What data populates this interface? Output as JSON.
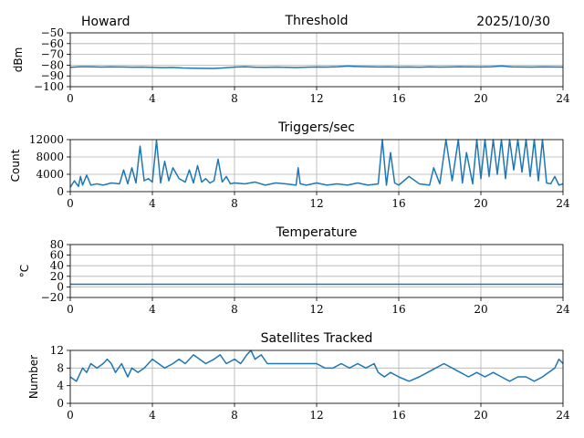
{
  "header": {
    "station": "Howard",
    "date": "2025/10/30"
  },
  "chart_data": [
    {
      "id": "threshold",
      "type": "line",
      "title": "Threshold",
      "ylabel": "dBm",
      "xlabel": "",
      "xlim": [
        0,
        24
      ],
      "ylim": [
        -100,
        -50
      ],
      "xticks": [
        0,
        4,
        8,
        12,
        16,
        20,
        24
      ],
      "yticks": [
        -100,
        -90,
        -80,
        -70,
        -60,
        -50
      ],
      "ytick_labels": [
        "−100",
        "−90",
        "−80",
        "−70",
        "−60",
        "−50"
      ],
      "grid": true,
      "series": [
        {
          "name": "threshold",
          "x": [
            0,
            0.5,
            1,
            1.5,
            2,
            2.5,
            3,
            3.5,
            4,
            4.5,
            5,
            5.5,
            6,
            6.5,
            7,
            7.5,
            8,
            8.5,
            9,
            9.5,
            10,
            10.5,
            11,
            11.5,
            12,
            12.5,
            13,
            13.5,
            14,
            14.5,
            15,
            15.5,
            16,
            16.5,
            17,
            17.5,
            18,
            18.5,
            19,
            19.5,
            20,
            20.5,
            21,
            21.5,
            22,
            22.5,
            23,
            23.5,
            24
          ],
          "y": [
            -82,
            -81.5,
            -81.5,
            -81.8,
            -81.6,
            -81.7,
            -81.9,
            -81.8,
            -82,
            -82.3,
            -82.1,
            -82.6,
            -82.8,
            -82.9,
            -83,
            -82.5,
            -81.8,
            -81.5,
            -81.9,
            -82,
            -81.8,
            -82,
            -82.2,
            -81.9,
            -81.7,
            -81.8,
            -81.5,
            -80.9,
            -81.2,
            -81.5,
            -81.7,
            -81.6,
            -81.8,
            -81.7,
            -81.9,
            -81.6,
            -81.8,
            -81.7,
            -81.5,
            -81.6,
            -81.7,
            -81.5,
            -80.8,
            -81.6,
            -81.7,
            -81.8,
            -81.6,
            -81.7,
            -81.8
          ]
        }
      ]
    },
    {
      "id": "triggers",
      "type": "line",
      "title": "Triggers/sec",
      "ylabel": "Count",
      "xlabel": "",
      "xlim": [
        0,
        24
      ],
      "ylim": [
        0,
        12000
      ],
      "xticks": [
        0,
        4,
        8,
        12,
        16,
        20,
        24
      ],
      "yticks": [
        0,
        4000,
        8000,
        12000
      ],
      "ytick_labels": [
        "0",
        "4000",
        "8000",
        "12000"
      ],
      "grid": true,
      "series": [
        {
          "name": "triggers",
          "x": [
            0,
            0.2,
            0.4,
            0.5,
            0.6,
            0.8,
            1,
            1.3,
            1.6,
            2,
            2.4,
            2.6,
            2.8,
            3,
            3.2,
            3.4,
            3.6,
            3.8,
            4,
            4.2,
            4.4,
            4.6,
            4.8,
            5,
            5.3,
            5.6,
            5.8,
            6,
            6.2,
            6.4,
            6.6,
            6.8,
            7,
            7.2,
            7.4,
            7.6,
            7.8,
            8,
            8.5,
            9,
            9.5,
            10,
            10.5,
            11,
            11.1,
            11.2,
            11.5,
            12,
            12.5,
            13,
            13.5,
            14,
            14.5,
            15,
            15.2,
            15.4,
            15.6,
            15.8,
            16,
            16.5,
            17,
            17.5,
            17.7,
            18,
            18.3,
            18.6,
            18.9,
            19.1,
            19.3,
            19.6,
            19.8,
            20,
            20.2,
            20.4,
            20.6,
            20.8,
            21,
            21.2,
            21.4,
            21.6,
            21.8,
            22,
            22.2,
            22.4,
            22.6,
            22.8,
            23,
            23.2,
            23.4,
            23.6,
            23.8,
            24
          ],
          "y": [
            1000,
            2500,
            1200,
            3500,
            1500,
            3800,
            1500,
            1800,
            1500,
            2000,
            1800,
            5000,
            1800,
            5500,
            2000,
            10500,
            2500,
            3000,
            2200,
            11800,
            2000,
            7000,
            2500,
            5500,
            3000,
            2200,
            5000,
            2000,
            6000,
            2200,
            3000,
            2000,
            2500,
            7500,
            2200,
            3500,
            1800,
            2000,
            1800,
            2200,
            1500,
            2000,
            1800,
            1500,
            5500,
            1800,
            1500,
            2000,
            1500,
            1800,
            1500,
            2000,
            1500,
            1800,
            12000,
            1500,
            9000,
            2000,
            1500,
            3500,
            1800,
            1500,
            5500,
            1800,
            12000,
            2500,
            12000,
            2000,
            9000,
            1800,
            12000,
            3000,
            12000,
            3500,
            12000,
            4000,
            12000,
            3000,
            12000,
            5000,
            12000,
            4500,
            12000,
            3500,
            12000,
            2500,
            12000,
            2000,
            1800,
            3500,
            1500,
            1800
          ]
        }
      ]
    },
    {
      "id": "temperature",
      "type": "line",
      "title": "Temperature",
      "ylabel": "°C",
      "xlabel": "",
      "xlim": [
        0,
        24
      ],
      "ylim": [
        -20,
        80
      ],
      "xticks": [
        0,
        4,
        8,
        12,
        16,
        20,
        24
      ],
      "yticks": [
        -20,
        0,
        20,
        40,
        60,
        80
      ],
      "ytick_labels": [
        "−20",
        "0",
        "20",
        "40",
        "60",
        "80"
      ],
      "grid": true,
      "series": [
        {
          "name": "temperature",
          "x": [
            0,
            24
          ],
          "y": [
            5,
            5
          ]
        }
      ]
    },
    {
      "id": "satellites",
      "type": "line",
      "title": "Satellites Tracked",
      "ylabel": "Number",
      "xlabel": "",
      "xlim": [
        0,
        24
      ],
      "ylim": [
        0,
        12
      ],
      "xticks": [
        0,
        4,
        8,
        12,
        16,
        20,
        24
      ],
      "yticks": [
        0,
        4,
        8,
        12
      ],
      "ytick_labels": [
        "0",
        "4",
        "8",
        "12"
      ],
      "grid": true,
      "series": [
        {
          "name": "satellites",
          "x": [
            0,
            0.3,
            0.6,
            0.8,
            1,
            1.3,
            1.6,
            1.8,
            2,
            2.2,
            2.5,
            2.8,
            3,
            3.3,
            3.6,
            4,
            4.3,
            4.6,
            5,
            5.3,
            5.6,
            6,
            6.3,
            6.6,
            7,
            7.3,
            7.6,
            8,
            8.3,
            8.6,
            8.8,
            9,
            9.3,
            9.6,
            10,
            10.5,
            11,
            11.5,
            12,
            12.4,
            12.8,
            13.2,
            13.6,
            14,
            14.4,
            14.8,
            15,
            15.3,
            15.6,
            16,
            16.5,
            17,
            17.4,
            17.8,
            18.2,
            18.6,
            19,
            19.4,
            19.8,
            20.2,
            20.6,
            21,
            21.4,
            21.8,
            22.2,
            22.6,
            23,
            23.3,
            23.6,
            23.8,
            24
          ],
          "y": [
            6,
            5,
            8,
            7,
            9,
            8,
            9,
            10,
            9,
            7,
            9,
            6,
            8,
            7,
            8,
            10,
            9,
            8,
            9,
            10,
            9,
            11,
            10,
            9,
            10,
            11,
            9,
            10,
            9,
            11,
            12,
            10,
            11,
            9,
            9,
            9,
            9,
            9,
            9,
            8,
            8,
            9,
            8,
            9,
            8,
            9,
            7,
            6,
            7,
            6,
            5,
            6,
            7,
            8,
            9,
            8,
            7,
            6,
            7,
            6,
            7,
            6,
            5,
            6,
            6,
            5,
            6,
            7,
            8,
            10,
            9
          ]
        }
      ]
    }
  ]
}
